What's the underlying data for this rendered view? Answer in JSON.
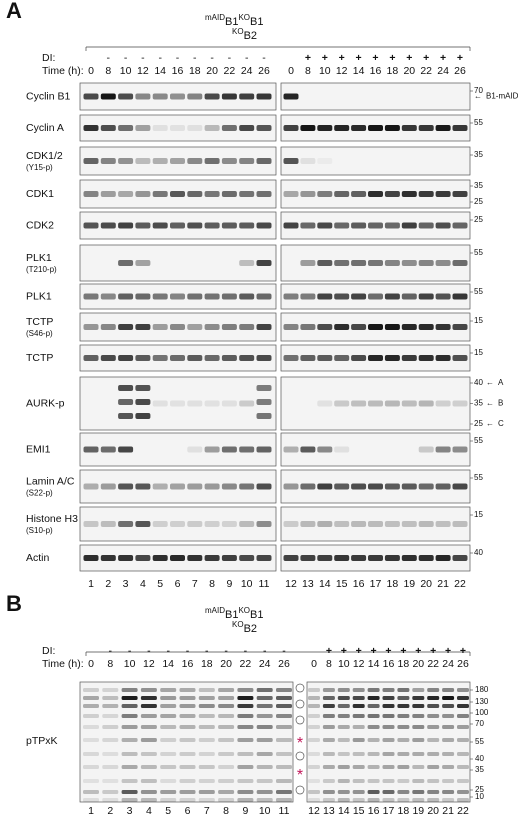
{
  "panel_a": {
    "letter": "A",
    "genotype": [
      {
        "sup": "mAID",
        "text": "B1"
      },
      {
        "sup": "KO",
        "text": "B1"
      },
      {
        "sup": "KO",
        "text": "B2"
      }
    ],
    "di_label": "DI:",
    "time_label": "Time (h):",
    "di_left": [
      "-",
      "-",
      "-",
      "-",
      "-",
      "-",
      "-",
      "-",
      "-",
      "-"
    ],
    "times_left": [
      0,
      8,
      10,
      12,
      14,
      16,
      18,
      20,
      22,
      24,
      26
    ],
    "di_right": [
      "+",
      "+",
      "+",
      "+",
      "+",
      "+",
      "+",
      "+",
      "+",
      "+"
    ],
    "times_right": [
      0,
      8,
      10,
      12,
      14,
      16,
      18,
      20,
      22,
      24,
      26
    ],
    "rows": [
      {
        "label": "Cyclin B1",
        "markers": [
          {
            "text": 70
          }
        ],
        "arrow": "B1-mAID"
      },
      {
        "label": "Cyclin A",
        "markers": [
          {
            "text": 55
          }
        ]
      },
      {
        "label": "CDK1/2",
        "sublabel": "(Y15-p)",
        "markers": [
          {
            "text": 35
          }
        ]
      },
      {
        "label": "CDK1",
        "markers": [
          {
            "text": 35
          },
          {
            "text": 25
          }
        ]
      },
      {
        "label": "CDK2",
        "markers": [
          {
            "text": 25
          }
        ]
      },
      {
        "label": "PLK1",
        "sublabel": "(T210-p)",
        "markers": [
          {
            "text": 55
          }
        ]
      },
      {
        "label": "PLK1",
        "markers": [
          {
            "text": 55
          }
        ]
      },
      {
        "label": "TCTP",
        "sublabel": "(S46-p)",
        "markers": [
          {
            "text": 15
          }
        ]
      },
      {
        "label": "TCTP",
        "markers": [
          {
            "text": 15
          }
        ]
      },
      {
        "label": "AURK-p",
        "markers": [
          {
            "text": 40,
            "arrow": "A"
          },
          {
            "text": 35,
            "arrow": "B"
          },
          {
            "text": 25,
            "arrow": "C"
          }
        ]
      },
      {
        "label": "EMI1",
        "markers": [
          {
            "text": 55
          }
        ]
      },
      {
        "label": "Lamin A/C",
        "sublabel": "(S22-p)",
        "markers": [
          {
            "text": 55
          }
        ]
      },
      {
        "label": "Histone H3",
        "sublabel": "(S10-p)",
        "markers": [
          {
            "text": 15
          }
        ]
      },
      {
        "label": "Actin",
        "markers": [
          {
            "text": 40
          }
        ]
      }
    ],
    "lanes": [
      1,
      2,
      3,
      4,
      5,
      6,
      7,
      8,
      9,
      10,
      11,
      12,
      13,
      14,
      15,
      16,
      17,
      18,
      19,
      20,
      21,
      22
    ]
  },
  "panel_b": {
    "letter": "B",
    "genotype": [
      {
        "sup": "mAID",
        "text": "B1"
      },
      {
        "sup": "KO",
        "text": "B1"
      },
      {
        "sup": "KO",
        "text": "B2"
      }
    ],
    "di_label": "DI:",
    "time_label": "Time (h):",
    "di_left": [
      "-",
      "-",
      "-",
      "-",
      "-",
      "-",
      "-",
      "-",
      "-",
      "-"
    ],
    "times_left": [
      0,
      8,
      10,
      12,
      14,
      16,
      18,
      20,
      22,
      24,
      26
    ],
    "di_right": [
      "+",
      "+",
      "+",
      "+",
      "+",
      "+",
      "+",
      "+",
      "+",
      "+"
    ],
    "times_right": [
      0,
      8,
      10,
      12,
      14,
      16,
      18,
      20,
      22,
      24,
      26
    ],
    "label": "pTPxK",
    "markers": [
      180,
      130,
      100,
      70,
      55,
      40,
      35,
      25,
      10
    ],
    "asterisks": [
      "*",
      "*"
    ],
    "lanes": [
      1,
      2,
      3,
      4,
      5,
      6,
      7,
      8,
      9,
      10,
      11,
      12,
      13,
      14,
      15,
      16,
      17,
      18,
      19,
      20,
      21,
      22
    ]
  }
}
